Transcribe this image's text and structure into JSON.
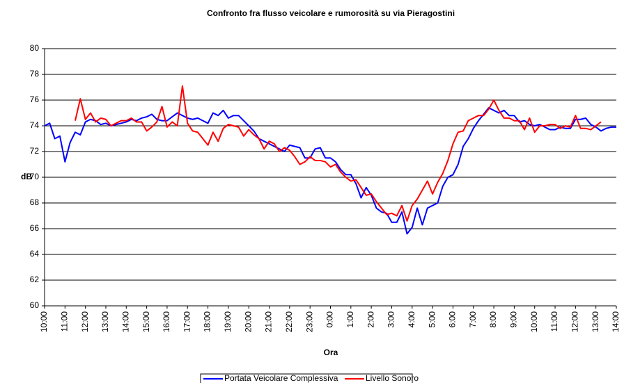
{
  "chart_data": {
    "type": "line",
    "title": "Confronto fra flusso veicolare e rumorosità su via Pieragostini",
    "x_label": "Ora",
    "y_label": "dB",
    "categories": [
      "10:00",
      null,
      null,
      null,
      "11:00",
      null,
      null,
      null,
      "12:00",
      null,
      null,
      null,
      "13:00",
      null,
      null,
      null,
      "14:00",
      null,
      null,
      null,
      "15:00",
      null,
      null,
      null,
      "16:00",
      null,
      null,
      null,
      "17:00",
      null,
      null,
      null,
      "18:00",
      null,
      null,
      null,
      "19:00",
      null,
      null,
      null,
      "20:00",
      null,
      null,
      null,
      "21:00",
      null,
      null,
      null,
      "22:00",
      null,
      null,
      null,
      "23:00",
      null,
      null,
      null,
      "0:00",
      null,
      null,
      null,
      "1:00",
      null,
      null,
      null,
      "2:00",
      null,
      null,
      null,
      "3:00",
      null,
      null,
      null,
      "4:00",
      null,
      null,
      null,
      "5:00",
      null,
      null,
      null,
      "6:00",
      null,
      null,
      null,
      "7:00",
      null,
      null,
      null,
      "8:00",
      null,
      null,
      null,
      "9:00",
      null,
      null,
      null,
      "10:00",
      null,
      null,
      null,
      "11:00",
      null,
      null,
      null,
      "12:00",
      null,
      null,
      null,
      "13:00",
      null,
      null,
      null,
      "14:00"
    ],
    "series": [
      {
        "name": "Portata Veicolare Complessiva",
        "color": "#0000ff",
        "values": [
          74.0,
          74.2,
          73.0,
          73.2,
          71.2,
          72.7,
          73.5,
          73.3,
          74.3,
          74.5,
          74.4,
          74.1,
          74.2,
          74.0,
          74.1,
          74.2,
          74.3,
          74.5,
          74.4,
          74.6,
          74.7,
          74.9,
          74.5,
          74.4,
          74.4,
          74.7,
          75.0,
          74.8,
          74.6,
          74.5,
          74.6,
          74.4,
          74.2,
          75.0,
          74.8,
          75.2,
          74.6,
          74.8,
          74.8,
          74.4,
          74.0,
          73.6,
          73.0,
          72.8,
          72.6,
          72.4,
          72.2,
          72.0,
          72.5,
          72.4,
          72.3,
          71.5,
          71.5,
          72.2,
          72.3,
          71.5,
          71.5,
          71.2,
          70.6,
          70.2,
          70.2,
          69.5,
          68.4,
          69.2,
          68.6,
          67.6,
          67.3,
          67.2,
          66.5,
          66.5,
          67.3,
          65.6,
          66.1,
          67.6,
          66.3,
          67.6,
          67.8,
          68.0,
          69.3,
          70.0,
          70.2,
          71.0,
          72.4,
          73.0,
          73.8,
          74.4,
          74.9,
          75.4,
          75.2,
          75.0,
          75.2,
          74.8,
          74.8,
          74.3,
          74.4,
          74.1,
          74.0,
          74.1,
          73.9,
          73.7,
          73.7,
          73.9,
          73.8,
          73.8,
          74.5,
          74.5,
          74.6,
          74.1,
          73.9,
          73.6,
          73.8,
          73.9,
          73.9
        ]
      },
      {
        "name": "Livello Sonoro",
        "color": "#ff0000",
        "values": [
          null,
          null,
          null,
          null,
          null,
          null,
          74.4,
          76.1,
          74.5,
          75.0,
          74.3,
          74.6,
          74.5,
          74.0,
          74.2,
          74.4,
          74.4,
          74.6,
          74.3,
          74.3,
          73.6,
          73.9,
          74.3,
          75.5,
          73.9,
          74.3,
          74.0,
          77.1,
          74.2,
          73.6,
          73.5,
          73.0,
          72.5,
          73.5,
          72.8,
          73.8,
          74.1,
          74.0,
          73.9,
          73.2,
          73.7,
          73.3,
          73.0,
          72.2,
          72.8,
          72.6,
          72.0,
          72.3,
          72.1,
          71.6,
          71.0,
          71.2,
          71.6,
          71.3,
          71.3,
          71.2,
          70.8,
          71.0,
          70.4,
          70.0,
          69.7,
          69.8,
          69.2,
          68.6,
          68.7,
          68.1,
          67.6,
          67.1,
          67.2,
          67.0,
          67.8,
          66.6,
          67.8,
          68.3,
          69.0,
          69.7,
          68.7,
          69.6,
          70.3,
          71.3,
          72.6,
          73.5,
          73.6,
          74.4,
          74.6,
          74.8,
          74.8,
          75.3,
          76.0,
          75.2,
          74.6,
          74.6,
          74.4,
          74.4,
          73.7,
          74.6,
          73.5,
          74.0,
          74.0,
          74.1,
          74.1,
          73.8,
          74.0,
          73.9,
          74.8,
          73.8,
          73.8,
          73.7,
          74.0,
          74.3,
          null,
          null,
          null
        ]
      }
    ],
    "ylim": [
      60,
      80
    ],
    "yticks": [
      60,
      62,
      64,
      66,
      68,
      70,
      72,
      74,
      76,
      78,
      80
    ],
    "grid": true,
    "legend": "bottom"
  }
}
